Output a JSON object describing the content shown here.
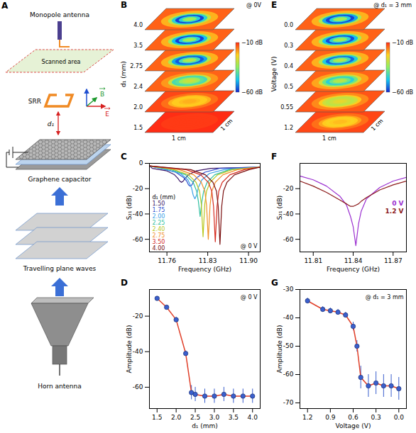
{
  "diagram": {
    "letter": "A",
    "labels": {
      "monopole_antenna": "Monopole antenna",
      "scanned_area": "Scanned area",
      "srr": "SRR",
      "distance": "d₁",
      "graphene_capacitor": "Graphene capacitor",
      "plane_waves": "Travelling plane waves",
      "horn_antenna": "Horn antenna",
      "field_e": "E",
      "field_b": "B"
    }
  },
  "chart_data": [
    {
      "letter": "B",
      "type": "heatmap_stack",
      "annotation": "@ 0V",
      "layer_axis_label": "d₁ (mm)",
      "extent_cm": 1,
      "radius_cm": [
        0.75,
        0.4,
        0.3,
        0.25,
        0.2,
        0.15,
        0.1,
        0.05
      ],
      "layers": [
        {
          "label": "4.0",
          "values": [
            -14,
            -20,
            -30,
            -45,
            -58,
            -45,
            -35,
            -32
          ]
        },
        {
          "label": "3.5",
          "values": [
            -14,
            -20,
            -32,
            -48,
            -58,
            -45,
            -35,
            -32
          ]
        },
        {
          "label": "2.75",
          "values": [
            -14,
            -20,
            -32,
            -50,
            -56,
            -42,
            -33,
            -30
          ]
        },
        {
          "label": "2.4",
          "values": [
            -14,
            -18,
            -28,
            -42,
            -40,
            -33,
            -30,
            -28
          ]
        },
        {
          "label": "2.0",
          "values": [
            -12,
            -15,
            -20,
            -22,
            -22,
            -21,
            -20,
            -20
          ]
        },
        {
          "label": "1.5",
          "values": [
            -10,
            -11,
            -11,
            -11,
            -11,
            -11,
            -11,
            -11
          ]
        }
      ],
      "colorbar": {
        "range": [
          -60,
          -10
        ],
        "ticks": [
          {
            "value": -10,
            "label": "−10 dB"
          },
          {
            "value": -60,
            "label": "−60 dB"
          }
        ]
      },
      "scale_labels": [
        "1 cm",
        "1 cm"
      ]
    },
    {
      "letter": "C",
      "type": "line",
      "annotation": "@ 0 V",
      "xlabel": "Frequency (GHz)",
      "ylabel": "S₂₁ (dB)",
      "xlim": [
        11.73,
        11.92
      ],
      "xticks": [
        11.76,
        11.83,
        {
          "value": 11.9,
          "label": "11.90"
        }
      ],
      "ylim": [
        -70,
        0
      ],
      "yticks": [
        0,
        -20,
        -40,
        -60
      ],
      "legend": "lower left",
      "legend_title": "d₁ (mm)",
      "series": [
        {
          "name": "1.50",
          "color": "#3b1466",
          "x": [
            11.73,
            11.735,
            11.76,
            11.773,
            11.779,
            11.782,
            11.785,
            11.788,
            11.791,
            11.797,
            11.81,
            11.835,
            11.92
          ],
          "values": [
            -2,
            -4,
            -6,
            -9,
            -12,
            -14,
            -15,
            -14,
            -12,
            -9,
            -6,
            -4,
            -3
          ]
        },
        {
          "name": "1.75",
          "color": "#2f4fcf",
          "x": [
            11.73,
            11.75,
            11.775,
            11.788,
            11.794,
            11.797,
            11.8,
            11.803,
            11.806,
            11.812,
            11.825,
            11.85,
            11.92
          ],
          "values": [
            -2,
            -4,
            -7,
            -11,
            -14,
            -17,
            -18,
            -17,
            -14,
            -11,
            -7,
            -4,
            -3
          ]
        },
        {
          "name": "2.00",
          "color": "#3aa0e6",
          "x": [
            11.73,
            11.758,
            11.783,
            11.796,
            11.802,
            11.805,
            11.808,
            11.811,
            11.814,
            11.82,
            11.833,
            11.858,
            11.92
          ],
          "values": [
            -2,
            -5,
            -8,
            -13,
            -19,
            -25,
            -28,
            -25,
            -19,
            -13,
            -8,
            -5,
            -3
          ]
        },
        {
          "name": "2.25",
          "color": "#2fbfa0",
          "x": [
            11.73,
            11.767,
            11.792,
            11.805,
            11.811,
            11.814,
            11.817,
            11.82,
            11.823,
            11.829,
            11.842,
            11.867,
            11.92
          ],
          "values": [
            -2,
            -5,
            -9,
            -15,
            -22,
            -30,
            -42,
            -30,
            -22,
            -15,
            -9,
            -5,
            -3
          ]
        },
        {
          "name": "2.40",
          "color": "#b8c81e",
          "x": [
            11.73,
            11.772,
            11.797,
            11.81,
            11.816,
            11.819,
            11.822,
            11.825,
            11.828,
            11.834,
            11.847,
            11.872,
            11.92
          ],
          "values": [
            -2,
            -5,
            -9,
            -15,
            -22,
            -32,
            -58,
            -32,
            -22,
            -15,
            -9,
            -5,
            -3
          ]
        },
        {
          "name": "2.75",
          "color": "#f0902a",
          "x": [
            11.73,
            11.781,
            11.806,
            11.819,
            11.825,
            11.828,
            11.831,
            11.834,
            11.837,
            11.843,
            11.856,
            11.881,
            11.92
          ],
          "values": [
            -2,
            -5,
            -9,
            -15,
            -22,
            -33,
            -60,
            -33,
            -22,
            -15,
            -9,
            -5,
            -3
          ]
        },
        {
          "name": "3.50",
          "color": "#d42a1e",
          "x": [
            11.73,
            11.793,
            11.818,
            11.831,
            11.837,
            11.84,
            11.843,
            11.846,
            11.849,
            11.855,
            11.868,
            11.893,
            11.92
          ],
          "values": [
            -2,
            -5,
            -9,
            -15,
            -22,
            -34,
            -62,
            -34,
            -22,
            -15,
            -9,
            -5,
            -3
          ]
        },
        {
          "name": "4.00",
          "color": "#7a0f0f",
          "x": [
            11.73,
            11.801,
            11.826,
            11.839,
            11.845,
            11.848,
            11.851,
            11.854,
            11.857,
            11.863,
            11.876,
            11.901,
            11.92
          ],
          "values": [
            -2,
            -5,
            -9,
            -15,
            -22,
            -34,
            -64,
            -34,
            -22,
            -15,
            -9,
            -5,
            -3
          ]
        }
      ]
    },
    {
      "letter": "D",
      "type": "line",
      "annotation": "@ 0 V",
      "xlabel": "d₁ (mm)",
      "ylabel": "Amplitude (dB)",
      "xlim": [
        1.3,
        4.2
      ],
      "xticks": [
        1.5,
        {
          "value": 2,
          "label": "2.0"
        },
        2.5,
        {
          "value": 3,
          "label": "3.0"
        },
        3.5,
        {
          "value": 4,
          "label": "4.0"
        }
      ],
      "ylim": [
        -72,
        -5
      ],
      "yticks": [
        -20,
        -40,
        -60
      ],
      "color": "#e0402a",
      "marker": "circle",
      "line_style": "solid",
      "x": [
        1.5,
        1.75,
        2.0,
        2.25,
        2.4,
        2.5,
        2.75,
        3.0,
        3.25,
        3.5,
        3.75,
        4.0
      ],
      "values": [
        -10,
        -15,
        -22,
        -41,
        -63,
        -64,
        -65,
        -65,
        -64,
        -65,
        -65,
        -65
      ],
      "errors": [
        1,
        1,
        1.5,
        1.5,
        4,
        4,
        4,
        4,
        4,
        4,
        4,
        4
      ]
    },
    {
      "letter": "E",
      "type": "heatmap_stack",
      "annotation": "@ d₁ = 3 mm",
      "layer_axis_label": "Voltage (V)",
      "extent_cm": 1,
      "radius_cm": [
        0.75,
        0.4,
        0.3,
        0.25,
        0.2,
        0.15,
        0.1,
        0.05
      ],
      "layers": [
        {
          "label": "0.0",
          "values": [
            -14,
            -20,
            -32,
            -50,
            -58,
            -45,
            -34,
            -32
          ]
        },
        {
          "label": "0.3",
          "values": [
            -14,
            -20,
            -32,
            -48,
            -57,
            -44,
            -34,
            -32
          ]
        },
        {
          "label": "0.4",
          "values": [
            -14,
            -20,
            -30,
            -46,
            -55,
            -42,
            -33,
            -30
          ]
        },
        {
          "label": "0.5",
          "values": [
            -14,
            -19,
            -27,
            -38,
            -45,
            -38,
            -32,
            -30
          ]
        },
        {
          "label": "0.55",
          "values": [
            -13,
            -17,
            -22,
            -28,
            -30,
            -28,
            -26,
            -25
          ]
        },
        {
          "label": "1.2",
          "values": [
            -12,
            -15,
            -19,
            -22,
            -23,
            -22,
            -21,
            -21
          ]
        }
      ],
      "colorbar": {
        "range": [
          -60,
          -10
        ],
        "ticks": [
          {
            "value": -10,
            "label": "−10 dB"
          },
          {
            "value": -60,
            "label": "−60 dB"
          }
        ]
      },
      "scale_labels": [
        "1 cm",
        "1 cm"
      ]
    },
    {
      "letter": "F",
      "type": "line",
      "xlabel": "Frequency (GHz)",
      "ylabel": "S₂₁ (dB)",
      "xlim": [
        11.8,
        11.88
      ],
      "xticks": [
        11.81,
        11.84,
        11.87
      ],
      "ylim": [
        -70,
        0
      ],
      "yticks": [
        -20,
        -40,
        -60
      ],
      "legend": "center right",
      "series": [
        {
          "name": "0 V",
          "color": "#9b30d0",
          "x": [
            11.8,
            11.81,
            11.82,
            11.83,
            11.835,
            11.838,
            11.84,
            11.842,
            11.844,
            11.846,
            11.85,
            11.86,
            11.87,
            11.88
          ],
          "values": [
            -10,
            -13,
            -18,
            -26,
            -33,
            -42,
            -50,
            -65,
            -48,
            -38,
            -28,
            -19,
            -14,
            -11
          ]
        },
        {
          "name": "1.2 V",
          "color": "#8b1a1a",
          "x": [
            11.8,
            11.81,
            11.82,
            11.83,
            11.835,
            11.838,
            11.84,
            11.842,
            11.844,
            11.846,
            11.85,
            11.86,
            11.87,
            11.88
          ],
          "values": [
            -14,
            -18,
            -23,
            -29,
            -32,
            -34,
            -34,
            -33,
            -32,
            -30,
            -27,
            -21,
            -17,
            -14
          ]
        }
      ]
    },
    {
      "letter": "G",
      "type": "line",
      "annotation": "@ d₁ = 3 mm",
      "xlabel": "Voltage (V)",
      "ylabel": "Amplitude (dB)",
      "xlim": [
        1.3,
        -0.1
      ],
      "xticks": [
        1.2,
        0.9,
        0.6,
        0.3,
        {
          "value": 0,
          "label": "0.0"
        }
      ],
      "ylim": [
        -72,
        -30
      ],
      "yticks": [
        -30,
        -40,
        -50,
        -60,
        -70
      ],
      "color": "#e0402a",
      "marker": "circle",
      "line_style": "solid",
      "x": [
        1.2,
        1.0,
        0.9,
        0.8,
        0.7,
        0.6,
        0.55,
        0.5,
        0.4,
        0.3,
        0.2,
        0.1,
        0.0
      ],
      "values": [
        -34,
        -37,
        -37.5,
        -38,
        -39,
        -43,
        -50,
        -61,
        -64,
        -63,
        -64,
        -64,
        -65
      ],
      "errors": [
        1,
        1,
        1,
        1,
        1,
        1.5,
        2,
        4,
        4,
        4,
        4,
        4,
        4
      ]
    }
  ]
}
